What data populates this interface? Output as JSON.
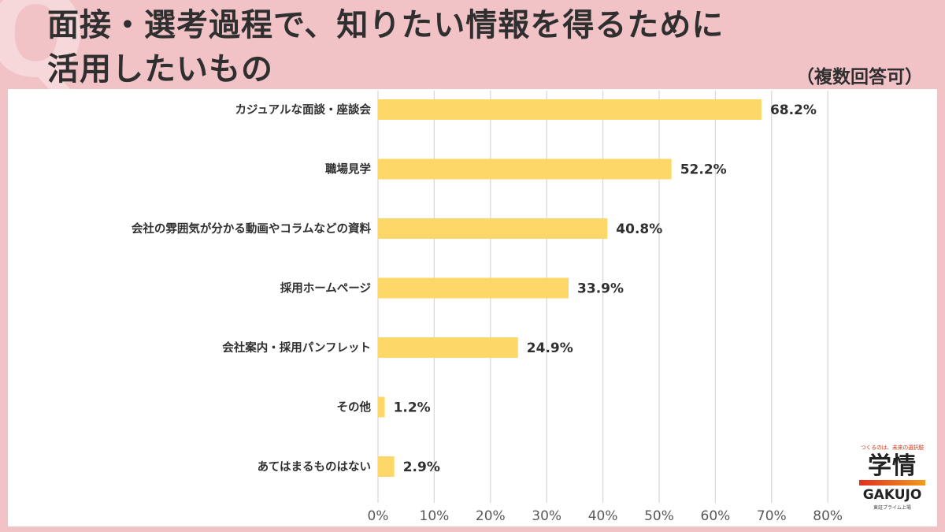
{
  "header": {
    "watermark": "Q",
    "title_line1": "面接・選考過程で、知りたい情報を得るために",
    "title_line2": "活用したいもの",
    "subtitle": "（複数回答可）"
  },
  "logo": {
    "tagline": "つくるのは、未来の選択肢",
    "jp": "学情",
    "en": "GAKUJO",
    "note": "東証プライム上場"
  },
  "colors": {
    "bar": "#FDD868",
    "grid": "#D9D9D9",
    "label": "#2F2F2F",
    "tick": "#595959",
    "background": "#F1C3C7"
  },
  "chart_data": {
    "type": "bar",
    "orientation": "horizontal",
    "categories": [
      "カジュアルな面談・座談会",
      "職場見学",
      "会社の雰囲気が分かる動画やコラムなどの資料",
      "採用ホームページ",
      "会社案内・採用パンフレット",
      "その他",
      "あてはまるものはない"
    ],
    "values": [
      68.2,
      52.2,
      40.8,
      33.9,
      24.9,
      1.2,
      2.9
    ],
    "value_labels": [
      "68.2%",
      "52.2%",
      "40.8%",
      "33.9%",
      "24.9%",
      "1.2%",
      "2.9%"
    ],
    "xlim": [
      0,
      80
    ],
    "xticks": [
      0,
      10,
      20,
      30,
      40,
      50,
      60,
      70,
      80
    ],
    "xtick_labels": [
      "0%",
      "10%",
      "20%",
      "30%",
      "40%",
      "50%",
      "60%",
      "70%",
      "80%"
    ],
    "grid": true
  }
}
